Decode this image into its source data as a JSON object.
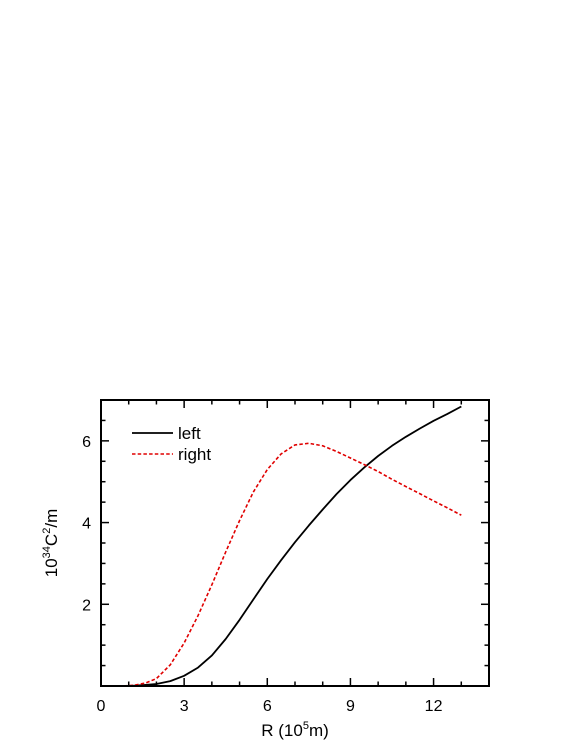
{
  "chart_data": {
    "type": "line",
    "xlabel": {
      "prefix": "R (10",
      "sup": "5",
      "suffix": "m)"
    },
    "ylabel": {
      "prefix": "10",
      "sup1": "34",
      "mid": "C",
      "sup2": "2",
      "suffix": "/m"
    },
    "xlim": [
      0,
      14
    ],
    "ylim": [
      0,
      7
    ],
    "x_ticks": [
      0,
      3,
      6,
      9,
      12
    ],
    "y_ticks": [
      2,
      4,
      6
    ],
    "legend_position": "top-left",
    "series": [
      {
        "name": "left",
        "color": "#000000",
        "dash": "solid",
        "x": [
          0,
          1,
          1.5,
          2,
          2.5,
          3,
          3.5,
          4,
          4.5,
          5,
          5.5,
          6,
          6.5,
          7,
          7.5,
          8,
          8.5,
          9,
          9.5,
          10,
          10.5,
          11,
          11.5,
          12,
          12.5,
          13
        ],
        "y": [
          0,
          0,
          0.02,
          0.05,
          0.12,
          0.25,
          0.45,
          0.75,
          1.15,
          1.62,
          2.12,
          2.62,
          3.08,
          3.52,
          3.93,
          4.32,
          4.7,
          5.04,
          5.35,
          5.63,
          5.88,
          6.1,
          6.3,
          6.49,
          6.66,
          6.84
        ]
      },
      {
        "name": "right",
        "color": "#e00000",
        "dash": "dashed",
        "x": [
          0,
          0.8,
          1.2,
          1.6,
          2,
          2.5,
          3,
          3.5,
          4,
          4.5,
          5,
          5.5,
          6,
          6.5,
          7,
          7.5,
          8,
          8.5,
          9,
          9.5,
          10,
          10.5,
          11,
          11.5,
          12,
          12.5,
          13
        ],
        "y": [
          0,
          0,
          0.02,
          0.07,
          0.18,
          0.52,
          1.05,
          1.72,
          2.48,
          3.28,
          4.05,
          4.75,
          5.3,
          5.68,
          5.9,
          5.94,
          5.88,
          5.74,
          5.58,
          5.42,
          5.25,
          5.06,
          4.88,
          4.71,
          4.53,
          4.36,
          4.18
        ]
      }
    ]
  }
}
